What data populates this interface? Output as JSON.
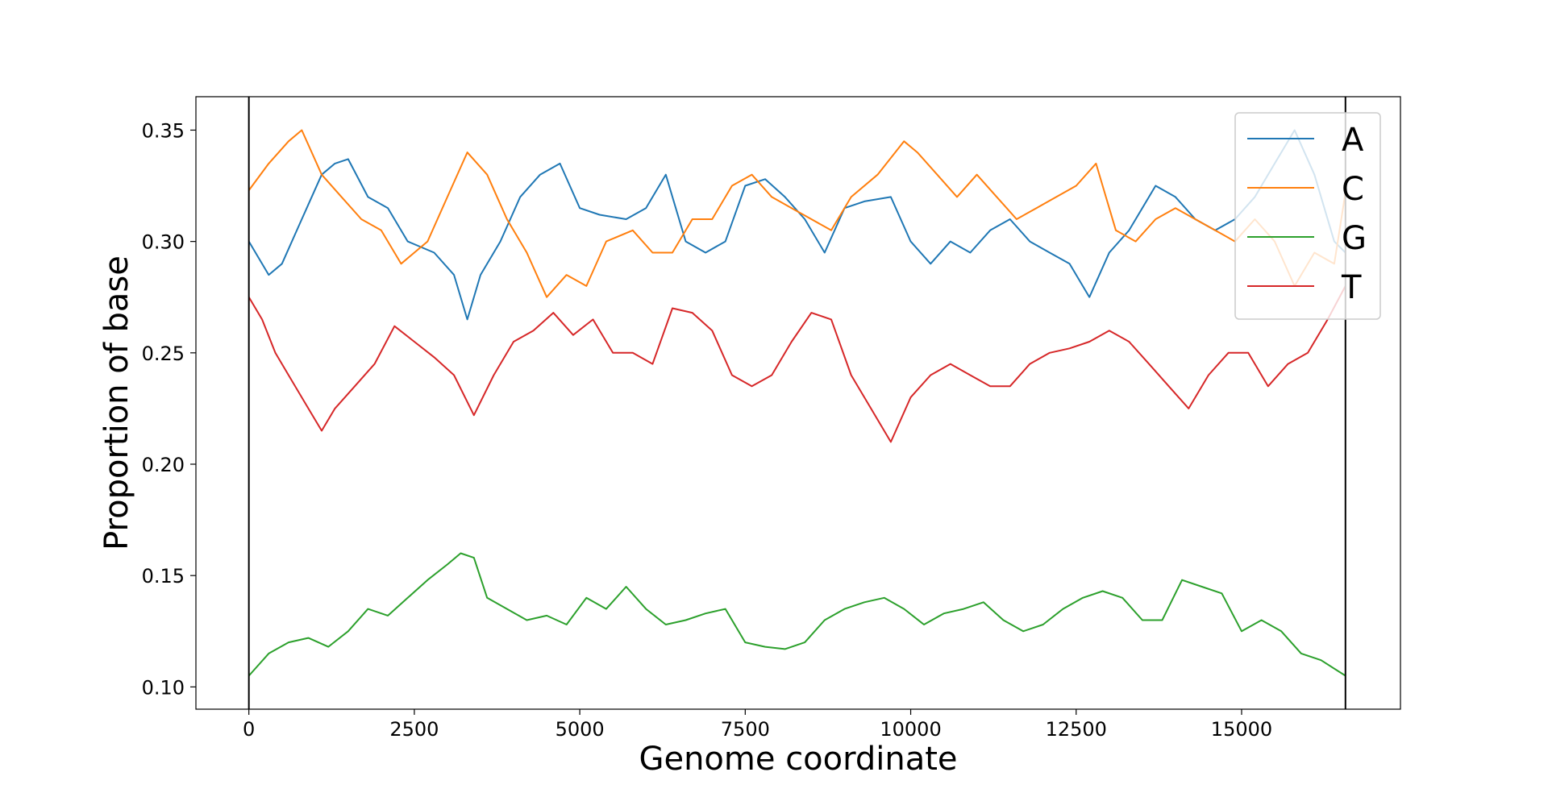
{
  "chart_data": {
    "type": "line",
    "title": "",
    "xlabel": "Genome coordinate",
    "ylabel": "Proportion of base",
    "xlim": [
      -800,
      17400
    ],
    "ylim": [
      0.09,
      0.365
    ],
    "xticks": [
      0,
      2500,
      5000,
      7500,
      10000,
      12500,
      15000
    ],
    "xtick_labels": [
      "0",
      "2500",
      "5000",
      "7500",
      "10000",
      "12500",
      "15000"
    ],
    "yticks": [
      0.1,
      0.15,
      0.2,
      0.25,
      0.3,
      0.35
    ],
    "ytick_labels": [
      "0.10",
      "0.15",
      "0.20",
      "0.25",
      "0.30",
      "0.35"
    ],
    "vlines": [
      0,
      16569
    ],
    "grid": false,
    "legend_position": "top-right",
    "series": [
      {
        "name": "A",
        "color": "#1f77b4",
        "x": [
          0,
          300,
          500,
          800,
          1100,
          1300,
          1500,
          1800,
          2100,
          2400,
          2800,
          3100,
          3300,
          3500,
          3800,
          4100,
          4400,
          4700,
          5000,
          5300,
          5700,
          6000,
          6300,
          6600,
          6900,
          7200,
          7500,
          7800,
          8100,
          8400,
          8700,
          9000,
          9300,
          9700,
          10000,
          10300,
          10600,
          10900,
          11200,
          11500,
          11800,
          12100,
          12400,
          12700,
          13000,
          13300,
          13700,
          14000,
          14300,
          14600,
          14900,
          15200,
          15500,
          15800,
          16100,
          16400,
          16569
        ],
        "y": [
          0.3,
          0.285,
          0.29,
          0.31,
          0.33,
          0.335,
          0.337,
          0.32,
          0.315,
          0.3,
          0.295,
          0.285,
          0.265,
          0.285,
          0.3,
          0.32,
          0.33,
          0.335,
          0.315,
          0.312,
          0.31,
          0.315,
          0.33,
          0.3,
          0.295,
          0.3,
          0.325,
          0.328,
          0.32,
          0.31,
          0.295,
          0.315,
          0.318,
          0.32,
          0.3,
          0.29,
          0.3,
          0.295,
          0.305,
          0.31,
          0.3,
          0.295,
          0.29,
          0.275,
          0.295,
          0.305,
          0.325,
          0.32,
          0.31,
          0.305,
          0.31,
          0.32,
          0.335,
          0.35,
          0.33,
          0.3,
          0.295
        ]
      },
      {
        "name": "C",
        "color": "#ff7f0e",
        "x": [
          0,
          300,
          600,
          800,
          1100,
          1400,
          1700,
          2000,
          2300,
          2700,
          3000,
          3300,
          3600,
          3900,
          4200,
          4500,
          4800,
          5100,
          5400,
          5800,
          6100,
          6400,
          6700,
          7000,
          7300,
          7600,
          7900,
          8200,
          8500,
          8800,
          9100,
          9500,
          9900,
          10100,
          10400,
          10700,
          11000,
          11300,
          11600,
          11900,
          12200,
          12500,
          12800,
          13100,
          13400,
          13700,
          14000,
          14300,
          14600,
          14900,
          15200,
          15500,
          15800,
          16100,
          16400,
          16569
        ],
        "y": [
          0.323,
          0.335,
          0.345,
          0.35,
          0.33,
          0.32,
          0.31,
          0.305,
          0.29,
          0.3,
          0.32,
          0.34,
          0.33,
          0.31,
          0.295,
          0.275,
          0.285,
          0.28,
          0.3,
          0.305,
          0.295,
          0.295,
          0.31,
          0.31,
          0.325,
          0.33,
          0.32,
          0.315,
          0.31,
          0.305,
          0.32,
          0.33,
          0.345,
          0.34,
          0.33,
          0.32,
          0.33,
          0.32,
          0.31,
          0.315,
          0.32,
          0.325,
          0.335,
          0.305,
          0.3,
          0.31,
          0.315,
          0.31,
          0.305,
          0.3,
          0.31,
          0.3,
          0.28,
          0.295,
          0.29,
          0.322
        ]
      },
      {
        "name": "G",
        "color": "#2ca02c",
        "x": [
          0,
          300,
          600,
          900,
          1200,
          1500,
          1800,
          2100,
          2400,
          2700,
          3000,
          3200,
          3400,
          3600,
          3900,
          4200,
          4500,
          4800,
          5100,
          5400,
          5700,
          6000,
          6300,
          6600,
          6900,
          7200,
          7500,
          7800,
          8100,
          8400,
          8700,
          9000,
          9300,
          9600,
          9900,
          10200,
          10500,
          10800,
          11100,
          11400,
          11700,
          12000,
          12300,
          12600,
          12900,
          13200,
          13500,
          13800,
          14100,
          14400,
          14700,
          15000,
          15300,
          15600,
          15900,
          16200,
          16569
        ],
        "y": [
          0.105,
          0.115,
          0.12,
          0.122,
          0.118,
          0.125,
          0.135,
          0.132,
          0.14,
          0.148,
          0.155,
          0.16,
          0.158,
          0.14,
          0.135,
          0.13,
          0.132,
          0.128,
          0.14,
          0.135,
          0.145,
          0.135,
          0.128,
          0.13,
          0.133,
          0.135,
          0.12,
          0.118,
          0.117,
          0.12,
          0.13,
          0.135,
          0.138,
          0.14,
          0.135,
          0.128,
          0.133,
          0.135,
          0.138,
          0.13,
          0.125,
          0.128,
          0.135,
          0.14,
          0.143,
          0.14,
          0.13,
          0.13,
          0.148,
          0.145,
          0.142,
          0.125,
          0.13,
          0.125,
          0.115,
          0.112,
          0.105
        ]
      },
      {
        "name": "T",
        "color": "#d62728",
        "x": [
          0,
          200,
          400,
          600,
          900,
          1100,
          1300,
          1600,
          1900,
          2200,
          2500,
          2800,
          3100,
          3400,
          3700,
          4000,
          4300,
          4600,
          4900,
          5200,
          5500,
          5800,
          6100,
          6400,
          6700,
          7000,
          7300,
          7600,
          7900,
          8200,
          8500,
          8800,
          9100,
          9400,
          9700,
          10000,
          10300,
          10600,
          10900,
          11200,
          11500,
          11800,
          12100,
          12400,
          12700,
          13000,
          13300,
          13600,
          13900,
          14200,
          14500,
          14800,
          15100,
          15400,
          15700,
          16000,
          16300,
          16569
        ],
        "y": [
          0.275,
          0.265,
          0.25,
          0.24,
          0.225,
          0.215,
          0.225,
          0.235,
          0.245,
          0.262,
          0.255,
          0.248,
          0.24,
          0.222,
          0.24,
          0.255,
          0.26,
          0.268,
          0.258,
          0.265,
          0.25,
          0.25,
          0.245,
          0.27,
          0.268,
          0.26,
          0.24,
          0.235,
          0.24,
          0.255,
          0.268,
          0.265,
          0.24,
          0.225,
          0.21,
          0.23,
          0.24,
          0.245,
          0.24,
          0.235,
          0.235,
          0.245,
          0.25,
          0.252,
          0.255,
          0.26,
          0.255,
          0.245,
          0.235,
          0.225,
          0.24,
          0.25,
          0.25,
          0.235,
          0.245,
          0.25,
          0.265,
          0.28
        ]
      }
    ]
  }
}
